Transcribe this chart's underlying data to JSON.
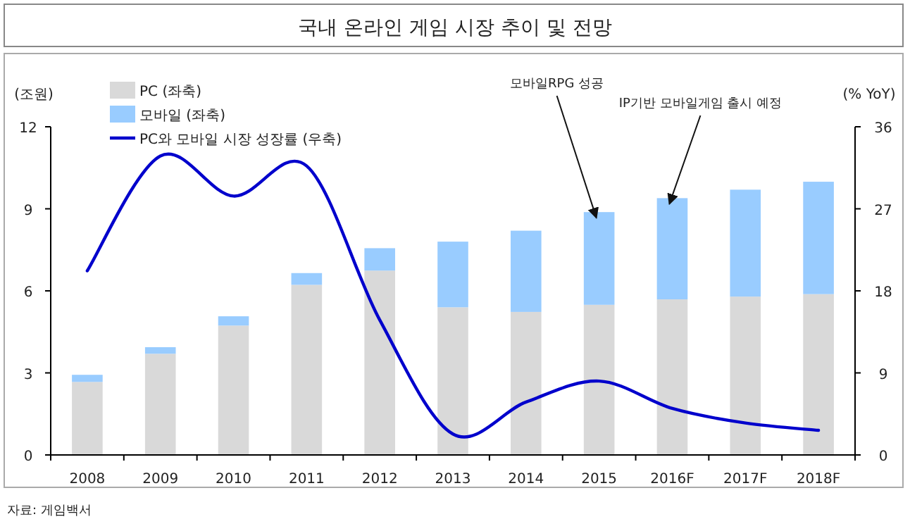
{
  "chart_data": {
    "type": "bar",
    "title": "국내 온라인 게임 시장 추이 및 전망",
    "categories": [
      "2008",
      "2009",
      "2010",
      "2011",
      "2012",
      "2013",
      "2014",
      "2015",
      "2016F",
      "2017F",
      "2018F"
    ],
    "series": [
      {
        "name": "PC (좌축)",
        "color": "#d9d9d9",
        "values": [
          2.67,
          3.7,
          4.73,
          6.22,
          6.74,
          5.4,
          5.23,
          5.49,
          5.69,
          5.79,
          5.88
        ]
      },
      {
        "name": "모바일 (좌축)",
        "color": "#99ccff",
        "values": [
          0.26,
          0.24,
          0.34,
          0.43,
          0.82,
          2.4,
          2.97,
          3.39,
          3.7,
          3.91,
          4.11
        ]
      },
      {
        "name": "PC와 모바일 시장 성장률 (우축)",
        "type": "line",
        "axis": "y2",
        "color": "#0000cc",
        "values": [
          20.2,
          32.8,
          28.4,
          31.7,
          14.8,
          2.3,
          5.8,
          8.1,
          5.1,
          3.5,
          2.7
        ]
      }
    ],
    "stacked": true,
    "ylabel": "(조원)",
    "y2label": "(% YoY)",
    "ylim": [
      0,
      12
    ],
    "yticks": [
      0,
      3,
      6,
      9,
      12
    ],
    "y2lim": [
      0,
      36
    ],
    "y2ticks": [
      0,
      9,
      18,
      27,
      36
    ],
    "legend": "top left",
    "grid": false,
    "annotations": [
      {
        "text": "모바일RPG 성공",
        "x": "2015",
        "y": 8.88
      },
      {
        "text": "IP기반 모바일게임 출시 예정",
        "x": "2016F",
        "y": 9.39
      },
      "자료: 게임백서"
    ]
  }
}
